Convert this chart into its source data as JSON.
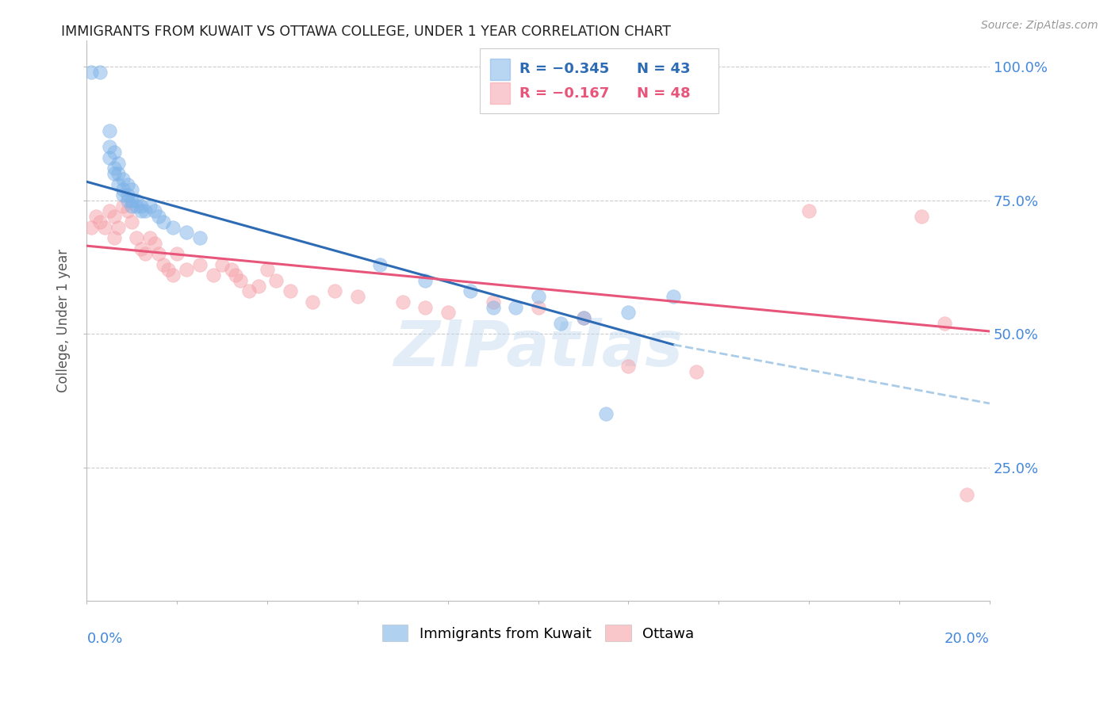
{
  "title": "IMMIGRANTS FROM KUWAIT VS OTTAWA COLLEGE, UNDER 1 YEAR CORRELATION CHART",
  "source": "Source: ZipAtlas.com",
  "ylabel": "College, Under 1 year",
  "legend_blue_r": "R = −0.345",
  "legend_blue_n": "N = 43",
  "legend_pink_r": "R = −0.167",
  "legend_pink_n": "N = 48",
  "blue_color": "#7EB3E8",
  "pink_color": "#F5A0A8",
  "blue_line_color": "#2E6BB5",
  "pink_line_color": "#E8557A",
  "dashed_line_color": "#AACCE8",
  "watermark": "ZIPatlas",
  "blue_scatter_x": [
    0.001,
    0.003,
    0.005,
    0.005,
    0.005,
    0.006,
    0.006,
    0.006,
    0.007,
    0.007,
    0.007,
    0.008,
    0.008,
    0.008,
    0.009,
    0.009,
    0.009,
    0.01,
    0.01,
    0.01,
    0.011,
    0.011,
    0.012,
    0.012,
    0.013,
    0.014,
    0.015,
    0.016,
    0.017,
    0.019,
    0.022,
    0.025,
    0.065,
    0.075,
    0.085,
    0.09,
    0.095,
    0.1,
    0.105,
    0.11,
    0.115,
    0.12,
    0.13
  ],
  "blue_scatter_y": [
    0.99,
    0.99,
    0.88,
    0.85,
    0.83,
    0.84,
    0.81,
    0.8,
    0.82,
    0.8,
    0.78,
    0.79,
    0.77,
    0.76,
    0.78,
    0.76,
    0.75,
    0.77,
    0.75,
    0.74,
    0.75,
    0.74,
    0.74,
    0.73,
    0.73,
    0.74,
    0.73,
    0.72,
    0.71,
    0.7,
    0.69,
    0.68,
    0.63,
    0.6,
    0.58,
    0.55,
    0.55,
    0.57,
    0.52,
    0.53,
    0.35,
    0.54,
    0.57
  ],
  "pink_scatter_x": [
    0.001,
    0.002,
    0.003,
    0.004,
    0.005,
    0.006,
    0.006,
    0.007,
    0.008,
    0.009,
    0.01,
    0.011,
    0.012,
    0.013,
    0.014,
    0.015,
    0.016,
    0.017,
    0.018,
    0.019,
    0.02,
    0.022,
    0.025,
    0.028,
    0.03,
    0.032,
    0.033,
    0.034,
    0.036,
    0.038,
    0.04,
    0.042,
    0.045,
    0.05,
    0.055,
    0.06,
    0.07,
    0.075,
    0.08,
    0.09,
    0.1,
    0.11,
    0.12,
    0.135,
    0.16,
    0.185,
    0.19,
    0.195
  ],
  "pink_scatter_y": [
    0.7,
    0.72,
    0.71,
    0.7,
    0.73,
    0.72,
    0.68,
    0.7,
    0.74,
    0.73,
    0.71,
    0.68,
    0.66,
    0.65,
    0.68,
    0.67,
    0.65,
    0.63,
    0.62,
    0.61,
    0.65,
    0.62,
    0.63,
    0.61,
    0.63,
    0.62,
    0.61,
    0.6,
    0.58,
    0.59,
    0.62,
    0.6,
    0.58,
    0.56,
    0.58,
    0.57,
    0.56,
    0.55,
    0.54,
    0.56,
    0.55,
    0.53,
    0.44,
    0.43,
    0.73,
    0.72,
    0.52,
    0.2
  ],
  "xlim": [
    0.0,
    0.2
  ],
  "ylim": [
    0.0,
    1.05
  ],
  "blue_trend_x": [
    0.0,
    0.13
  ],
  "blue_trend_y": [
    0.785,
    0.48
  ],
  "pink_trend_x": [
    0.0,
    0.2
  ],
  "pink_trend_y": [
    0.665,
    0.505
  ],
  "dashed_trend_x": [
    0.13,
    0.2
  ],
  "dashed_trend_y": [
    0.48,
    0.37
  ]
}
